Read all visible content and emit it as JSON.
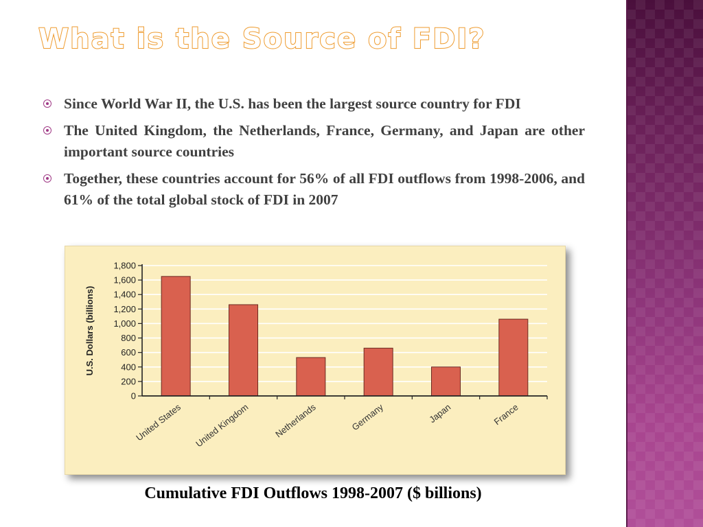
{
  "slide": {
    "title": "What is the Source of FDI?",
    "bullets": [
      "Since World War II, the U.S. has been the largest source country for FDI",
      "The United Kingdom, the Netherlands, France, Germany, and Japan are other important source countries",
      "Together, these countries account for 56% of all FDI outflows from 1998-2006, and 61% of the total global stock of FDI in 2007"
    ],
    "caption": "Cumulative FDI Outflows 1998-2007 ($ billions)",
    "bullet_icon": "circle-dot-icon",
    "colors": {
      "title_outline": "#ee9a2c",
      "bullet_icon": "#a03a86",
      "bar_fill": "#d9614f",
      "chart_background": "#fbeebf"
    }
  },
  "chart_data": {
    "type": "bar",
    "categories": [
      "United States",
      "United Kingdom",
      "Netherlands",
      "Germany",
      "Japan",
      "France"
    ],
    "values": [
      1650,
      1260,
      530,
      660,
      400,
      1060
    ],
    "ylabel": "U.S. Dollars (billions)",
    "xlabel": "",
    "ylim": [
      0,
      1800
    ],
    "yticks": [
      0,
      200,
      400,
      600,
      800,
      1000,
      1200,
      1400,
      1600,
      1800
    ],
    "ytick_labels": [
      "0",
      "200",
      "400",
      "600",
      "800",
      "1,000",
      "1,200",
      "1,400",
      "1,600",
      "1,800"
    ],
    "grid": true
  }
}
